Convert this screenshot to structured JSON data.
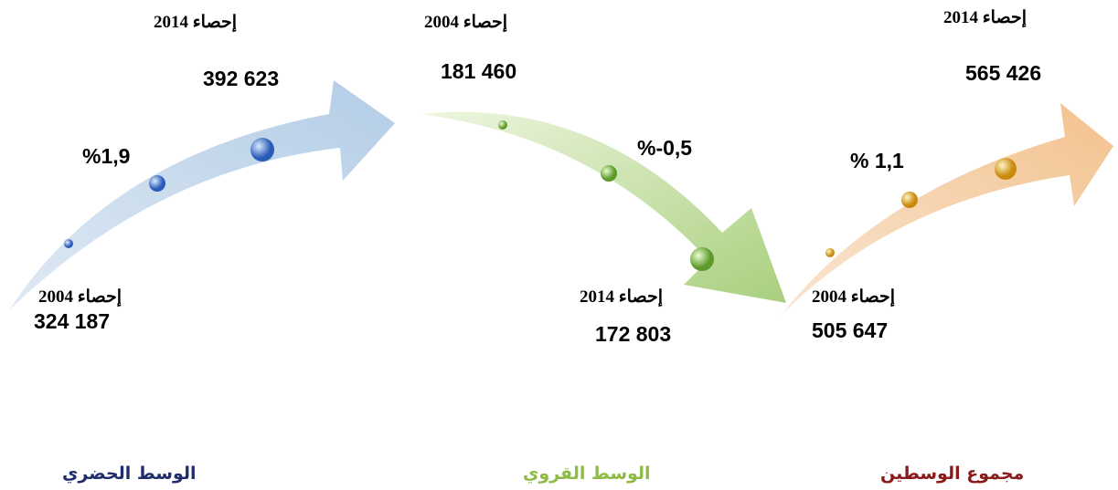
{
  "panels": [
    {
      "name": "الوسط الحضري",
      "start_label": "إحصاء 2004",
      "start_value": "324 187",
      "end_label": "إحصاء 2014",
      "end_value": "392 623",
      "rate": "%1,9"
    },
    {
      "name": "الوسط القروي",
      "start_label": "إحصاء 2004",
      "start_value": "181 460",
      "end_label": "إحصاء 2014",
      "end_value": "172 803",
      "rate": "%-0,5"
    },
    {
      "name": "مجموع الوسطين",
      "start_label": "إحصاء 2004",
      "start_value": "505 647",
      "end_label": "إحصاء 2014",
      "end_value": "565 426",
      "rate": "% 1,1"
    }
  ]
}
